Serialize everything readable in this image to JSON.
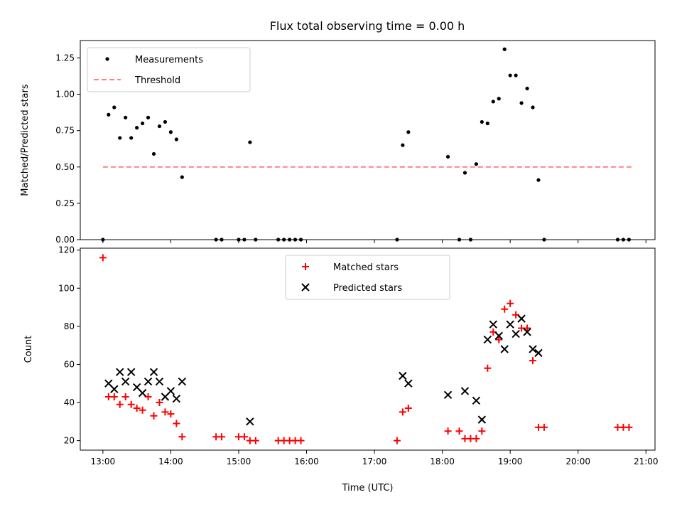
{
  "chart_data": [
    {
      "type": "scatter",
      "title": "Flux total observing time = 0.00 h",
      "xlabel": "",
      "ylabel": "Matched/Predicted stars",
      "xlim": [
        "12:40",
        "21:08"
      ],
      "ylim": [
        0.0,
        1.37
      ],
      "yticks": [
        0.0,
        0.25,
        0.5,
        0.75,
        1.0,
        1.25
      ],
      "ytick_labels": [
        "0.00",
        "0.25",
        "0.50",
        "0.75",
        "1.00",
        "1.25"
      ],
      "xticks": [
        "13:00",
        "14:00",
        "15:00",
        "16:00",
        "17:00",
        "18:00",
        "19:00",
        "20:00",
        "21:00"
      ],
      "xtick_labels": [],
      "legend_position": "upper-left",
      "series": [
        {
          "name": "Measurements",
          "style": "dots",
          "color": "#000000",
          "x": [
            "13:00",
            "13:05",
            "13:10",
            "13:15",
            "13:20",
            "13:25",
            "13:30",
            "13:35",
            "13:40",
            "13:45",
            "13:50",
            "13:55",
            "14:00",
            "14:05",
            "14:10",
            "14:40",
            "14:45",
            "15:00",
            "15:05",
            "15:10",
            "15:15",
            "15:35",
            "15:40",
            "15:45",
            "15:50",
            "15:55",
            "17:20",
            "17:25",
            "17:30",
            "18:05",
            "18:15",
            "18:20",
            "18:25",
            "18:30",
            "18:35",
            "18:40",
            "18:45",
            "18:50",
            "18:55",
            "19:00",
            "19:05",
            "19:10",
            "19:15",
            "19:20",
            "19:25",
            "19:30",
            "20:35",
            "20:40",
            "20:45"
          ],
          "y": [
            0.0,
            0.86,
            0.91,
            0.7,
            0.84,
            0.7,
            0.77,
            0.8,
            0.84,
            0.59,
            0.78,
            0.81,
            0.74,
            0.69,
            0.43,
            0.0,
            0.0,
            0.0,
            0.0,
            0.67,
            0.0,
            0.0,
            0.0,
            0.0,
            0.0,
            0.0,
            0.0,
            0.65,
            0.74,
            0.57,
            0.0,
            0.46,
            0.0,
            0.52,
            0.81,
            0.8,
            0.95,
            0.97,
            1.31,
            1.13,
            1.13,
            0.94,
            1.04,
            0.91,
            0.41,
            0.0,
            0.0,
            0.0,
            0.0
          ]
        },
        {
          "name": "Threshold",
          "style": "dashed-line",
          "color": "#ff8080",
          "x": [
            "13:00",
            "20:48"
          ],
          "y": [
            0.5,
            0.5
          ]
        }
      ]
    },
    {
      "type": "scatter",
      "title": "",
      "xlabel": "Time (UTC)",
      "ylabel": "Count",
      "xlim": [
        "12:40",
        "21:08"
      ],
      "ylim": [
        15,
        121
      ],
      "yticks": [
        20,
        40,
        60,
        80,
        100,
        120
      ],
      "ytick_labels": [
        "20",
        "40",
        "60",
        "80",
        "100",
        "120"
      ],
      "xticks": [
        "13:00",
        "14:00",
        "15:00",
        "16:00",
        "17:00",
        "18:00",
        "19:00",
        "20:00",
        "21:00"
      ],
      "xtick_labels": [
        "13:00",
        "14:00",
        "15:00",
        "16:00",
        "17:00",
        "18:00",
        "19:00",
        "20:00",
        "21:00"
      ],
      "legend_position": "upper-center",
      "series": [
        {
          "name": "Matched stars",
          "marker": "plus",
          "color": "#ff0000",
          "x": [
            "13:00",
            "13:05",
            "13:10",
            "13:15",
            "13:20",
            "13:25",
            "13:30",
            "13:35",
            "13:40",
            "13:45",
            "13:50",
            "13:55",
            "14:00",
            "14:05",
            "14:10",
            "14:40",
            "14:45",
            "15:00",
            "15:05",
            "15:10",
            "15:15",
            "15:35",
            "15:40",
            "15:45",
            "15:50",
            "15:55",
            "17:20",
            "17:25",
            "17:30",
            "18:05",
            "18:15",
            "18:20",
            "18:25",
            "18:30",
            "18:35",
            "18:40",
            "18:45",
            "18:50",
            "18:55",
            "19:00",
            "19:05",
            "19:10",
            "19:15",
            "19:20",
            "19:25",
            "19:30",
            "20:35",
            "20:40",
            "20:45"
          ],
          "y": [
            116,
            43,
            43,
            39,
            43,
            39,
            37,
            36,
            43,
            33,
            40,
            35,
            34,
            29,
            22,
            22,
            22,
            22,
            22,
            20,
            20,
            20,
            20,
            20,
            20,
            20,
            20,
            35,
            37,
            25,
            25,
            21,
            21,
            21,
            25,
            58,
            77,
            73,
            89,
            92,
            86,
            79,
            79,
            62,
            27,
            27,
            27,
            27,
            27
          ]
        },
        {
          "name": "Predicted stars",
          "marker": "x",
          "color": "#000000",
          "x": [
            "13:05",
            "13:10",
            "13:15",
            "13:20",
            "13:25",
            "13:30",
            "13:35",
            "13:40",
            "13:45",
            "13:50",
            "13:55",
            "14:00",
            "14:05",
            "14:10",
            "15:10",
            "17:25",
            "17:30",
            "18:05",
            "18:20",
            "18:30",
            "18:35",
            "18:40",
            "18:45",
            "18:50",
            "18:55",
            "19:00",
            "19:05",
            "19:10",
            "19:15",
            "19:20",
            "19:25"
          ],
          "y": [
            50,
            47,
            56,
            51,
            56,
            48,
            45,
            51,
            56,
            51,
            43,
            46,
            42,
            51,
            30,
            54,
            50,
            44,
            46,
            41,
            31,
            73,
            81,
            75,
            68,
            81,
            76,
            84,
            77,
            68,
            66
          ]
        }
      ]
    }
  ]
}
